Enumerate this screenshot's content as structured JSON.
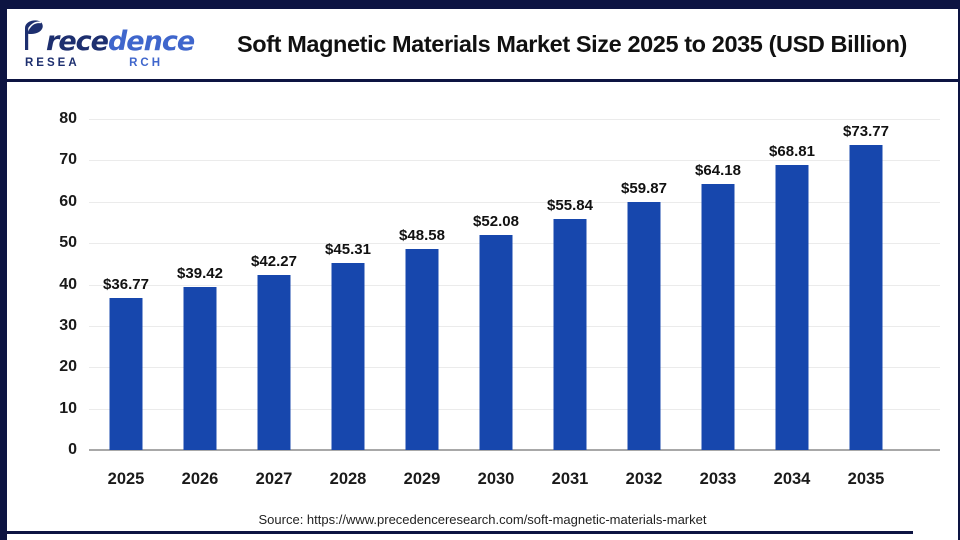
{
  "header": {
    "logo": {
      "wordmark_part1": "rece",
      "wordmark_part2": "dence",
      "sub_part1": "RESEA",
      "sub_part2": "RCH"
    },
    "title": "Soft Magnetic Materials Market Size 2025 to 2035 (USD Billion)"
  },
  "chart_data": {
    "type": "bar",
    "title": "Soft Magnetic Materials Market Size 2025 to 2035 (USD Billion)",
    "categories": [
      "2025",
      "2026",
      "2027",
      "2028",
      "2029",
      "2030",
      "2031",
      "2032",
      "2033",
      "2034",
      "2035"
    ],
    "values": [
      36.77,
      39.42,
      42.27,
      45.31,
      48.58,
      52.08,
      55.84,
      59.87,
      64.18,
      68.81,
      73.77
    ],
    "value_labels": [
      "$36.77",
      "$39.42",
      "$42.27",
      "$45.31",
      "$48.58",
      "$52.08",
      "$55.84",
      "$59.87",
      "$64.18",
      "$68.81",
      "$73.77"
    ],
    "unit": "USD Billion",
    "xlabel": "",
    "ylabel": "",
    "ylim": [
      0,
      80
    ],
    "yticks": [
      0,
      10,
      20,
      30,
      40,
      50,
      60,
      70,
      80
    ],
    "grid": true,
    "legend": false,
    "bar_color": "#1747ad"
  },
  "footer": {
    "source": "Source: https://www.precedenceresearch.com/soft-magnetic-materials-market"
  },
  "colors": {
    "accent_navy": "#0d1442",
    "bar_blue": "#1747ad",
    "logo_dark": "#1d2f6f",
    "logo_light": "#3f66cc"
  }
}
